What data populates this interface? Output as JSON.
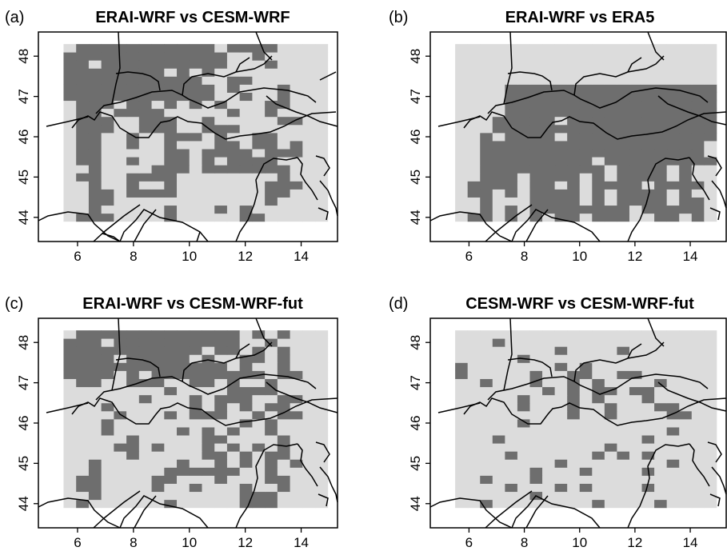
{
  "figure": {
    "background": "#ffffff",
    "colors": {
      "significant": "#6e6e6e",
      "not_significant": "#dcdcdc",
      "border": "#000000"
    }
  },
  "chart_data": [
    {
      "type": "heatmap",
      "panel_label": "(a)",
      "title": "ERAI-WRF vs CESM-WRF",
      "xlim": [
        4.6,
        15.3
      ],
      "ylim": [
        43.4,
        48.6
      ],
      "x_ticks": [
        "6",
        "8",
        "10",
        "12",
        "14"
      ],
      "y_ticks": [
        "44",
        "45",
        "46",
        "47",
        "48"
      ],
      "grid": {
        "x0": 5.5,
        "y0": 43.9,
        "dx": 0.45,
        "dy": 0.2,
        "rows": [
          "011100001000001100000",
          "001000001000101000000",
          "001100000000000010000",
          "001101111000000011000",
          "001001001000000011100",
          "011001111000000001000",
          "001000011101111111000",
          "011001001101011110000",
          "011000001101111011100",
          "011001001000110110100",
          "011001001110100110000",
          "011100111001110000000",
          "011100111001000001100",
          "011011110000010010000",
          "011101101010100011000",
          "111111111111001001000",
          "111111111111010001000",
          "111111111110011000000",
          "111111110101000000000",
          "110111111111100010000",
          "111111111111100100000",
          "011111111111011110000"
        ]
      }
    },
    {
      "type": "heatmap",
      "panel_label": "(b)",
      "title": "ERAI-WRF vs ERA5",
      "xlim": [
        4.6,
        15.3
      ],
      "ylim": [
        43.4,
        48.6
      ],
      "x_ticks": [
        "6",
        "8",
        "10",
        "12",
        "14"
      ],
      "y_ticks": [
        "44",
        "45",
        "46",
        "47",
        "48"
      ],
      "grid": {
        "x0": 5.5,
        "y0": 43.9,
        "dx": 0.45,
        "dy": 0.2,
        "rows": [
          "011010101101110011010",
          "001010111111110111110",
          "001000111101011110110",
          "011010111101011110100",
          "011110110101111011110",
          "001110111101011110100",
          "001111111111011110100",
          "001111111110111111111",
          "001111111111111111110",
          "001111111111111111110",
          "001011110111111111111",
          "000111111111111111111",
          "000111110111111111111",
          "000011111111111111111",
          "000011111111111111111",
          "000011111111111111111",
          "000011111111111111111",
          "000000000000000000000",
          "000000000000000000000",
          "000000000000000000000",
          "000000000000000000000",
          "000000000000000000000"
        ]
      }
    },
    {
      "type": "heatmap",
      "panel_label": "(c)",
      "title": "ERAI-WRF vs CESM-WRF-fut",
      "xlim": [
        4.6,
        15.3
      ],
      "ylim": [
        43.4,
        48.6
      ],
      "x_ticks": [
        "6",
        "8",
        "10",
        "12",
        "14"
      ],
      "y_ticks": [
        "44",
        "45",
        "46",
        "47",
        "48"
      ],
      "grid": {
        "x0": 5.5,
        "y0": 43.9,
        "dx": 0.45,
        "dy": 0.2,
        "rows": [
          "010000001000001110000",
          "001000000000001110000",
          "011000010010001001000",
          "011000011000100011000",
          "001000001111110010000",
          "001000000100101010100",
          "000001000001101011000",
          "000011010001010101000",
          "000001000001100001000",
          "000100000101010010000",
          "000100000000001010000",
          "000010001011100101100",
          "000100000010101011000",
          "000000100010111001100",
          "000000001000011110000",
          "011001110011010010000",
          "111101011111111101100",
          "111111111111101001000",
          "111101111101001101000",
          "111111111110110101000",
          "111011111111110010000",
          "011111111111110101000"
        ]
      }
    },
    {
      "type": "heatmap",
      "panel_label": "(d)",
      "title": "CESM-WRF vs CESM-WRF-fut",
      "xlim": [
        4.6,
        15.3
      ],
      "ylim": [
        43.4,
        48.6
      ],
      "x_ticks": [
        "6",
        "8",
        "10",
        "12",
        "14"
      ],
      "y_ticks": [
        "44",
        "45",
        "46",
        "47",
        "48"
      ],
      "grid": {
        "x0": 5.5,
        "y0": 43.9,
        "dx": 0.45,
        "dy": 0.2,
        "rows": [
          "001000000001000010000",
          "000000100000000000000",
          "000010001010000100000",
          "001000100000000000000",
          "000000100010000100000",
          "000000001000000001000",
          "000010000001010100000",
          "000000000000100000000",
          "000100000000000100000",
          "000000000000000001000",
          "000001000000000000000",
          "000000000100100001100",
          "000001000100100011000",
          "000001000101000100000",
          "000000010101101100000",
          "001000100101000010000",
          "100000100110011000000",
          "100000001010000000000",
          "000001000000000000000",
          "000000001000010000000",
          "000100000000000000000",
          "000000000000000000000"
        ]
      }
    }
  ]
}
